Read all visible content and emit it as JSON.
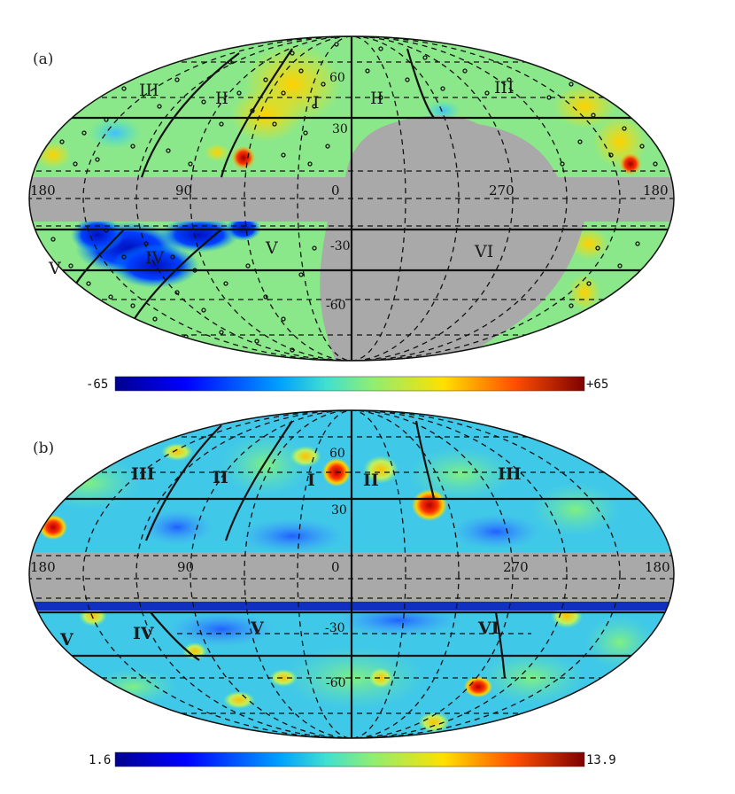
{
  "panel_a": {
    "label": "(a)",
    "lon_labels": [
      "180",
      "90",
      "0",
      "270",
      "180"
    ],
    "lat_labels": [
      "60",
      "30",
      "-30",
      "-60"
    ],
    "regions": [
      "III",
      "II",
      "I",
      "II",
      "III",
      "IV",
      "V",
      "V",
      "VI"
    ],
    "colorbar": {
      "min": "-65",
      "max": "+65"
    }
  },
  "panel_b": {
    "label": "(b)",
    "lon_labels": [
      "180",
      "90",
      "0",
      "270",
      "180"
    ],
    "lat_labels": [
      "60",
      "30",
      "-30",
      "-60"
    ],
    "regions": [
      "III",
      "II",
      "I",
      "II",
      "III",
      "V",
      "IV",
      "V",
      "VI"
    ],
    "colorbar": {
      "min": "1.6",
      "max": "13.9"
    }
  },
  "colors": {
    "mask": "#a9a9a9",
    "colormap": [
      "#00008f",
      "#0000ff",
      "#00a0ff",
      "#40e0d0",
      "#90ee70",
      "#ffe000",
      "#ff8000",
      "#ff0000",
      "#800000"
    ]
  }
}
